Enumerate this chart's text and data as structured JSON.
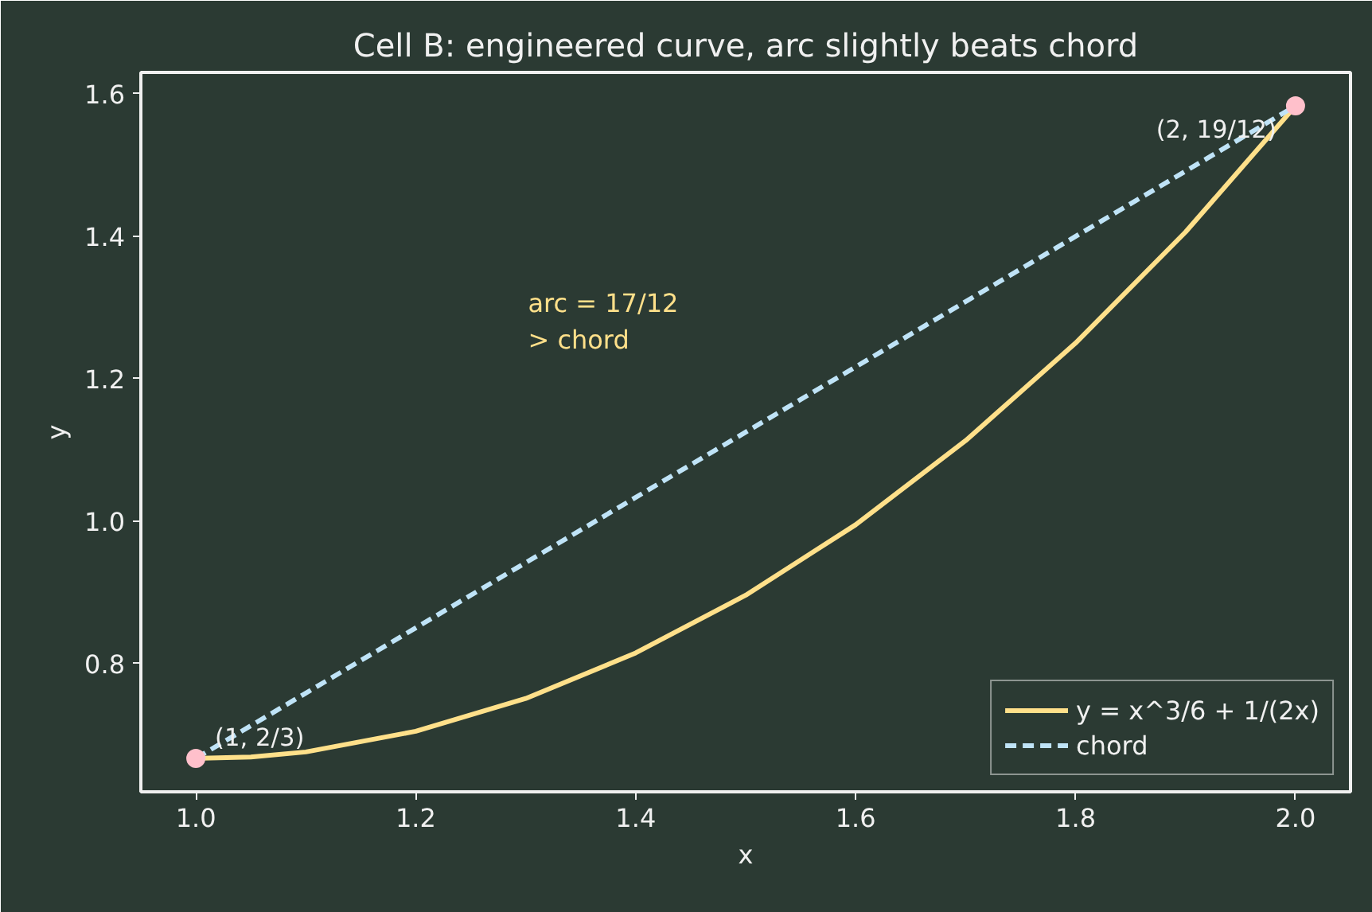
{
  "chart_data": {
    "type": "line",
    "title": "Cell B: engineered curve, arc slightly beats chord",
    "xlabel": "x",
    "ylabel": "y",
    "xlim": [
      0.95,
      2.05
    ],
    "ylim": [
      0.62,
      1.63
    ],
    "xticks": [
      {
        "value": 1.0,
        "label": "1.0"
      },
      1.2,
      1.4,
      1.6,
      1.8,
      {
        "value": 2.0,
        "label": "2.0"
      }
    ],
    "yticks": [
      0.8,
      {
        "value": 1.0,
        "label": "1.0"
      },
      1.2,
      1.4,
      1.6
    ],
    "grid": false,
    "legend": "bottom right",
    "series": [
      {
        "name": "y = x^3/6 + 1/(2x)",
        "color": "#ffe08a",
        "line_style": "solid",
        "x": [
          1.0,
          1.05,
          1.1,
          1.2,
          1.3,
          1.4,
          1.5,
          1.6,
          1.7,
          1.8,
          1.9,
          2.0
        ],
        "values": [
          0.667,
          0.669,
          0.676,
          0.705,
          0.751,
          0.815,
          0.896,
          0.995,
          1.113,
          1.25,
          1.406,
          1.583
        ]
      },
      {
        "name": "chord",
        "type": "line",
        "color": "#bfe3f7",
        "line_style": "dashed",
        "x": [
          1.0,
          2.0
        ],
        "values": [
          0.667,
          1.583
        ]
      },
      {
        "type": "scatter",
        "color": "#ffc0cb",
        "marker": "circle",
        "x": [
          1.0,
          2.0
        ],
        "values": [
          0.667,
          1.583
        ]
      }
    ],
    "annotations": [
      {
        "text": "(1, 2/3)",
        "x": 1.0,
        "y": 0.667
      },
      {
        "text": "(2, 19/12)",
        "x": 2.0,
        "y": 1.583
      },
      "arc = 17/12\n> chord"
    ]
  }
}
